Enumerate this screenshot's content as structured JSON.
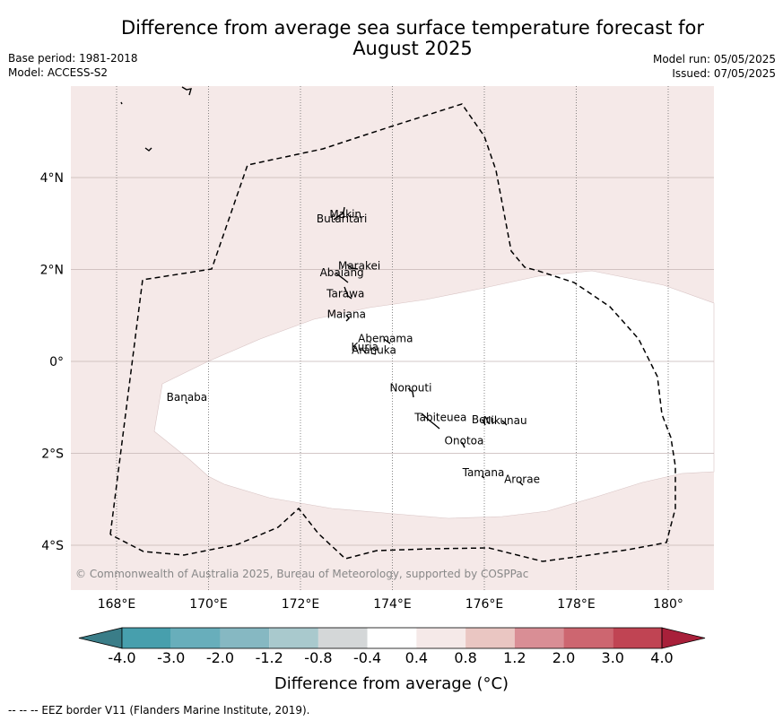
{
  "title_line1": "Difference from average sea surface temperature forecast for",
  "title_line2": "August 2025",
  "base_period": "Base period: 1981-2018",
  "model": "Model: ACCESS-S2",
  "model_run": "Model run: 05/05/2025",
  "issued": "Issued: 07/05/2025",
  "map": {
    "lon_labels": [
      "168°E",
      "170°E",
      "172°E",
      "174°E",
      "176°E",
      "178°E",
      "180°"
    ],
    "lat_labels": [
      "4°N",
      "2°N",
      "0°",
      "2°S",
      "4°S"
    ],
    "islands": [
      {
        "name": "Makin",
        "lon": 172.98,
        "lat": 3.12
      },
      {
        "name": "Butaritari",
        "lon": 172.9,
        "lat": 3.02
      },
      {
        "name": "Marakei",
        "lon": 173.28,
        "lat": 2.0
      },
      {
        "name": "Abaiang",
        "lon": 172.9,
        "lat": 1.85
      },
      {
        "name": "Tarawa",
        "lon": 172.98,
        "lat": 1.4
      },
      {
        "name": "Maiana",
        "lon": 173.0,
        "lat": 0.95
      },
      {
        "name": "Abemama",
        "lon": 173.85,
        "lat": 0.42
      },
      {
        "name": "Kuria",
        "lon": 173.4,
        "lat": 0.23
      },
      {
        "name": "Aranuka",
        "lon": 173.6,
        "lat": 0.17
      },
      {
        "name": "Nonouti",
        "lon": 174.4,
        "lat": -0.65
      },
      {
        "name": "Banaba",
        "lon": 169.53,
        "lat": -0.86
      },
      {
        "name": "Beru",
        "lon": 176.0,
        "lat": -1.35
      },
      {
        "name": "Nikunau",
        "lon": 176.45,
        "lat": -1.37
      },
      {
        "name": "Tabiteuea",
        "lon": 175.05,
        "lat": -1.3
      },
      {
        "name": "Onotoa",
        "lon": 175.56,
        "lat": -1.8
      },
      {
        "name": "Tamana",
        "lon": 175.98,
        "lat": -2.5
      },
      {
        "name": "Arorae",
        "lon": 176.82,
        "lat": -2.64
      }
    ],
    "copyright": "© Commonwealth of Australia 2025, Bureau of Meteorology, supported by COSPPac",
    "colors": {
      "land_sea_anomaly_0_4_to_0_8": "#f5e9e8",
      "anomaly_neg0_4_to_0_4": "#ffffff"
    }
  },
  "colorbar": {
    "title": "Difference from average (°C)",
    "tick_labels": [
      "-4.0",
      "-3.0",
      "-2.0",
      "-1.2",
      "-0.8",
      "-0.4",
      "0.4",
      "0.8",
      "1.2",
      "2.0",
      "3.0",
      "4.0"
    ],
    "colors": [
      "#3a7d88",
      "#479fad",
      "#68aebb",
      "#86b8c2",
      "#a9c9cd",
      "#d4d7d8",
      "#ffffff",
      "#f5e9e8",
      "#eac6c2",
      "#d98e95",
      "#cd6670",
      "#c04453",
      "#a8203a"
    ]
  },
  "footnote": "--  --  -- EEZ border V11 (Flanders Marine Institute, 2019)."
}
